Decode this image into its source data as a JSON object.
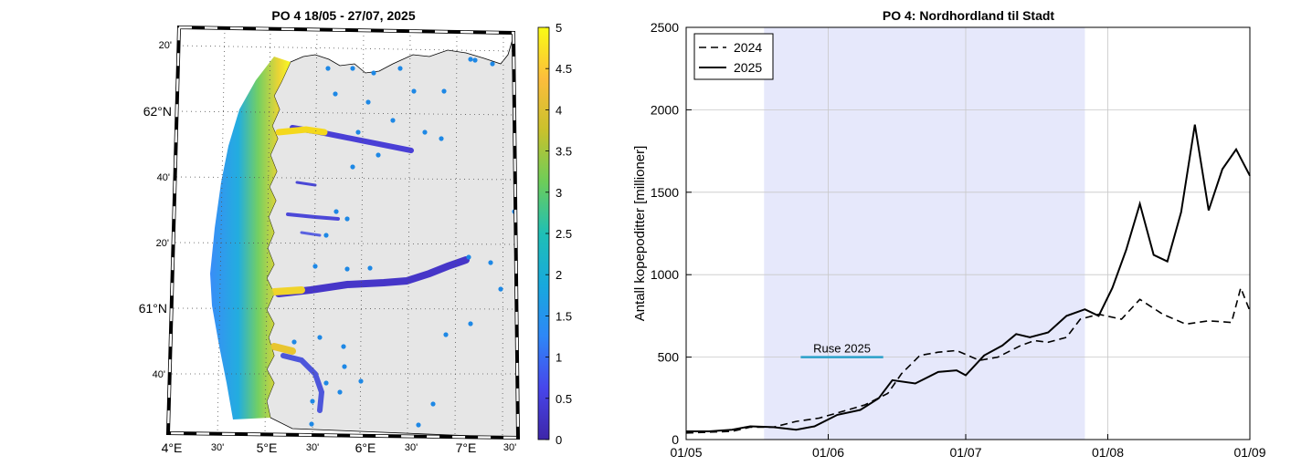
{
  "map": {
    "title": "PO 4  18/05 - 27/07, 2025",
    "lat_labels": [
      "20'",
      "62°N",
      "40'",
      "20'",
      "61°N",
      "40'"
    ],
    "lon_labels": [
      "4°E",
      "30'",
      "5°E",
      "30'",
      "6°E",
      "30'",
      "7°E",
      "30'"
    ],
    "colorbar": {
      "min": 0,
      "max": 5,
      "tick_labels": [
        "5",
        "4.5",
        "4",
        "3.5",
        "3",
        "2.5",
        "2",
        "1.5",
        "1",
        "0.5",
        "0"
      ],
      "colormap": [
        "#3e26a8",
        "#4746eb",
        "#2e87f7",
        "#17a9dd",
        "#1fbfb5",
        "#6dcd59",
        "#c9c12c",
        "#fcbd3c",
        "#f9fb15"
      ]
    },
    "colors": {
      "land": "#e6e6e6",
      "stations": "#1e88e5"
    }
  },
  "chart_data": {
    "type": "line",
    "title": "PO 4: Nordhordland til Stadt",
    "xlabel": "",
    "ylabel": "Antall kopepoditter [millioner]",
    "xlim": [
      "2025-05-01",
      "2025-09-01"
    ],
    "ylim": [
      0,
      2500
    ],
    "x_tick_labels": [
      "01/05",
      "01/06",
      "01/07",
      "01/08",
      "01/09"
    ],
    "y_tick_labels": [
      "0",
      "500",
      "1000",
      "1500",
      "2000",
      "2500"
    ],
    "grid": true,
    "legend_position": "top-left",
    "shaded_period": {
      "start": "2025-05-18",
      "end": "2025-07-27",
      "color": "#e6e8fb"
    },
    "ruse": {
      "label": "Ruse 2025",
      "start": "2025-05-26",
      "end": "2025-06-13",
      "value": 500,
      "color": "#2aa0c8"
    },
    "series": [
      {
        "name": "2024",
        "style": "dashed",
        "x": [
          "2025-05-01",
          "2025-05-06",
          "2025-05-11",
          "2025-05-15",
          "2025-05-20",
          "2025-05-25",
          "2025-05-30",
          "2025-06-04",
          "2025-06-09",
          "2025-06-14",
          "2025-06-17",
          "2025-06-21",
          "2025-06-25",
          "2025-06-29",
          "2025-07-04",
          "2025-07-08",
          "2025-07-13",
          "2025-07-16",
          "2025-07-19",
          "2025-07-23",
          "2025-07-26",
          "2025-07-30",
          "2025-08-04",
          "2025-08-08",
          "2025-08-13",
          "2025-08-18",
          "2025-08-23",
          "2025-08-28",
          "2025-08-30",
          "2025-09-01"
        ],
        "values": [
          40,
          45,
          50,
          75,
          75,
          110,
          130,
          170,
          210,
          280,
          400,
          510,
          530,
          540,
          480,
          500,
          570,
          600,
          590,
          620,
          730,
          760,
          730,
          850,
          760,
          700,
          720,
          710,
          920,
          780
        ]
      },
      {
        "name": "2025",
        "style": "solid",
        "x": [
          "2025-05-01",
          "2025-05-06",
          "2025-05-11",
          "2025-05-15",
          "2025-05-20",
          "2025-05-25",
          "2025-05-29",
          "2025-06-03",
          "2025-06-08",
          "2025-06-12",
          "2025-06-15",
          "2025-06-20",
          "2025-06-25",
          "2025-06-29",
          "2025-07-01",
          "2025-07-05",
          "2025-07-09",
          "2025-07-12",
          "2025-07-15",
          "2025-07-19",
          "2025-07-23",
          "2025-07-27",
          "2025-07-30",
          "2025-08-02",
          "2025-08-05",
          "2025-08-08",
          "2025-08-11",
          "2025-08-14",
          "2025-08-17",
          "2025-08-20",
          "2025-08-23",
          "2025-08-26",
          "2025-08-29",
          "2025-09-01"
        ],
        "values": [
          50,
          50,
          60,
          80,
          75,
          60,
          80,
          150,
          180,
          250,
          360,
          340,
          410,
          420,
          390,
          510,
          570,
          640,
          620,
          650,
          750,
          790,
          750,
          920,
          1150,
          1430,
          1120,
          1080,
          1380,
          1910,
          1390,
          1640,
          1760,
          1600
        ]
      }
    ]
  }
}
